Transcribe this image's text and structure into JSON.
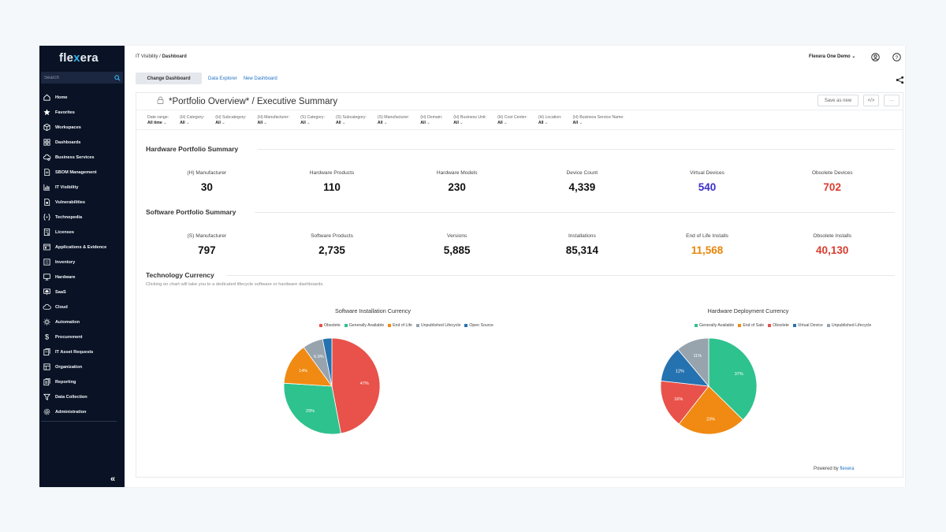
{
  "app": {
    "logo": "flexera"
  },
  "sidebar": {
    "search_placeholder": "Search",
    "items": [
      {
        "label": "Home",
        "icon": "home-icon"
      },
      {
        "label": "Favorites",
        "icon": "star-icon"
      },
      {
        "label": "Workspaces",
        "icon": "cube-icon"
      },
      {
        "label": "Dashboards",
        "icon": "grid-icon"
      },
      {
        "label": "Business Services",
        "icon": "cloud-gear-icon"
      },
      {
        "label": "SBOM Management",
        "icon": "document-icon"
      },
      {
        "label": "IT Visibility",
        "icon": "chart-icon"
      },
      {
        "label": "Vulnerabilities",
        "icon": "bug-file-icon"
      },
      {
        "label": "Technopedia",
        "icon": "brackets-icon"
      },
      {
        "label": "Licenses",
        "icon": "license-icon"
      },
      {
        "label": "Applications & Evidence",
        "icon": "apps-icon"
      },
      {
        "label": "Inventory",
        "icon": "inventory-icon"
      },
      {
        "label": "Hardware",
        "icon": "monitor-icon"
      },
      {
        "label": "SaaS",
        "icon": "saas-icon"
      },
      {
        "label": "Cloud",
        "icon": "cloud-icon"
      },
      {
        "label": "Automation",
        "icon": "automation-icon"
      },
      {
        "label": "Procurement",
        "icon": "dollar-icon"
      },
      {
        "label": "IT Asset Requests",
        "icon": "request-icon"
      },
      {
        "label": "Organization",
        "icon": "organization-icon"
      },
      {
        "label": "Reporting",
        "icon": "report-icon"
      },
      {
        "label": "Data Collection",
        "icon": "funnel-icon"
      },
      {
        "label": "Administration",
        "icon": "gear-icon"
      }
    ],
    "collapse": "«"
  },
  "header": {
    "breadcrumb_parent": "IT Visibility",
    "breadcrumb_sep": " / ",
    "breadcrumb_current": "Dashboard",
    "org": "Flexera One Demo"
  },
  "tabs": {
    "change": "Change Dashboard",
    "explorer": "Data Explorer",
    "new": "New Dashboard"
  },
  "dashboard": {
    "title": "*Portfolio Overview* / Executive Summary",
    "save_as_new": "Save as new",
    "code": "</>",
    "more": "···"
  },
  "filters": [
    {
      "label": "Date range:",
      "value": "All time"
    },
    {
      "label": "(H) Category:",
      "value": "All"
    },
    {
      "label": "(H) Subcategory:",
      "value": "All"
    },
    {
      "label": "(H) Manufacturer:",
      "value": "All"
    },
    {
      "label": "(S) Category:",
      "value": "All"
    },
    {
      "label": "(S) Subcategory:",
      "value": "All"
    },
    {
      "label": "(S) Manufacturer:",
      "value": "All"
    },
    {
      "label": "(H) Domain:",
      "value": "All"
    },
    {
      "label": "(H) Business Unit:",
      "value": "All"
    },
    {
      "label": "(H) Cost Center:",
      "value": "All"
    },
    {
      "label": "(H) Location:",
      "value": "All"
    },
    {
      "label": "(H) Business Service Name:",
      "value": "All"
    }
  ],
  "hardware_summary": {
    "title": "Hardware Portfolio Summary",
    "kpis": [
      {
        "label": "(H) Manufacturer",
        "value": "30",
        "color": "#111111"
      },
      {
        "label": "Hardware Products",
        "value": "110",
        "color": "#111111"
      },
      {
        "label": "Hardware Models",
        "value": "230",
        "color": "#111111"
      },
      {
        "label": "Device Count",
        "value": "4,339",
        "color": "#111111"
      },
      {
        "label": "Virtual Devices",
        "value": "540",
        "color": "#3b2fc9"
      },
      {
        "label": "Obsolete Devices",
        "value": "702",
        "color": "#d93c2e"
      }
    ]
  },
  "software_summary": {
    "title": "Software Portfolio Summary",
    "kpis": [
      {
        "label": "(S) Manufacturer",
        "value": "797",
        "color": "#111111"
      },
      {
        "label": "Software Products",
        "value": "2,735",
        "color": "#111111"
      },
      {
        "label": "Versions",
        "value": "5,885",
        "color": "#111111"
      },
      {
        "label": "Installations",
        "value": "85,314",
        "color": "#111111"
      },
      {
        "label": "End of Life Installs",
        "value": "11,568",
        "color": "#e8860a"
      },
      {
        "label": "Obsolete Installs",
        "value": "40,130",
        "color": "#d93c2e"
      }
    ]
  },
  "currency": {
    "title": "Technology Currency",
    "subtitle": "Clicking on chart will take you to a dedicated lifecycle software or hardware dashboards."
  },
  "chart_data": [
    {
      "type": "pie",
      "title": "Software Installation Currency",
      "legend": [
        {
          "name": "Obsolete",
          "color": "#e8524a"
        },
        {
          "name": "Generally Available",
          "color": "#2ec28e"
        },
        {
          "name": "End of Life",
          "color": "#f08a12"
        },
        {
          "name": "Unpublished Lifecycle",
          "color": "#97a3ad"
        },
        {
          "name": "Open Source",
          "color": "#2572b0"
        }
      ],
      "slices": [
        {
          "name": "Obsolete",
          "value": 47,
          "label": "47%",
          "color": "#e8524a"
        },
        {
          "name": "Generally Available",
          "value": 29,
          "label": "29%",
          "color": "#2ec28e"
        },
        {
          "name": "End of Life",
          "value": 14,
          "label": "14%",
          "color": "#f08a12"
        },
        {
          "name": "Unpublished Lifecycle",
          "value": 6.9,
          "label": "6.9%",
          "color": "#97a3ad"
        },
        {
          "name": "Open Source",
          "value": 3.1,
          "label": "",
          "color": "#2572b0"
        }
      ]
    },
    {
      "type": "pie",
      "title": "Hardware Deployment Currency",
      "legend": [
        {
          "name": "Generally Available",
          "color": "#2ec28e"
        },
        {
          "name": "End of Sale",
          "color": "#f08a12"
        },
        {
          "name": "Obsolete",
          "color": "#e8524a"
        },
        {
          "name": "Virtual Device",
          "color": "#2572b0"
        },
        {
          "name": "Unpublished Lifecycle",
          "color": "#97a3ad"
        }
      ],
      "slices": [
        {
          "name": "Generally Available",
          "value": 37,
          "label": "37%",
          "color": "#2ec28e"
        },
        {
          "name": "End of Sale",
          "value": 23,
          "label": "23%",
          "color": "#f08a12"
        },
        {
          "name": "Obsolete",
          "value": 16,
          "label": "16%",
          "color": "#e8524a"
        },
        {
          "name": "Virtual Device",
          "value": 12,
          "label": "12%",
          "color": "#2572b0"
        },
        {
          "name": "Unpublished Lifecycle",
          "value": 11,
          "label": "11%",
          "color": "#97a3ad"
        }
      ]
    }
  ],
  "footer": {
    "powered": "Powered by",
    "brand": "flexera"
  }
}
